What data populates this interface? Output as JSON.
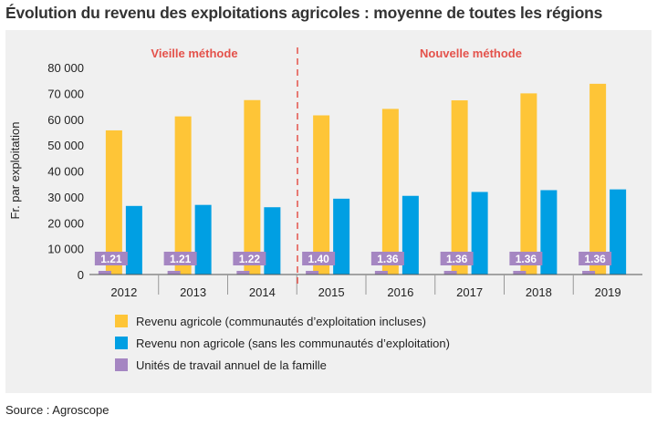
{
  "title": "Évolution du revenu des exploitations agricoles : moyenne de toutes les régions",
  "source": "Source : Agroscope",
  "methods": {
    "old": "Vieille méthode",
    "new": "Nouvelle méthode"
  },
  "colors": {
    "agri": "#fec537",
    "nonagri": "#009fe3",
    "units": "#a586c2",
    "divider": "#e4524b"
  },
  "chart_data": {
    "type": "bar",
    "ylabel": "Fr. par exploitation",
    "ylim": [
      0,
      80000
    ],
    "yticks": [
      0,
      10000,
      20000,
      30000,
      40000,
      50000,
      60000,
      70000,
      80000
    ],
    "ytick_labels": [
      "0",
      "10 000",
      "20 000",
      "30 000",
      "40 000",
      "50 000",
      "60 000",
      "70 000",
      "80 000"
    ],
    "categories": [
      "2012",
      "2013",
      "2014",
      "2015",
      "2016",
      "2017",
      "2018",
      "2019"
    ],
    "method_split_after": "2014",
    "series": [
      {
        "name": "Revenu agricole (communautés d’exploitation incluses)",
        "color": "#fec537",
        "values": [
          55700,
          61100,
          67400,
          61500,
          64000,
          67300,
          70000,
          73700
        ]
      },
      {
        "name": "Revenu non agricole (sans les communautés d’exploitation)",
        "color": "#009fe3",
        "values": [
          26500,
          26900,
          26000,
          29300,
          30400,
          31900,
          32600,
          32900
        ]
      },
      {
        "name": "Unités de travail annuel de la famille",
        "color": "#a586c2",
        "values": [
          1.21,
          1.21,
          1.22,
          1.4,
          1.36,
          1.36,
          1.36,
          1.36
        ],
        "labels": [
          "1.21",
          "1.21",
          "1.22",
          "1.40",
          "1.36",
          "1.36",
          "1.36",
          "1.36"
        ]
      }
    ],
    "grid": false,
    "legend_position": "bottom"
  }
}
